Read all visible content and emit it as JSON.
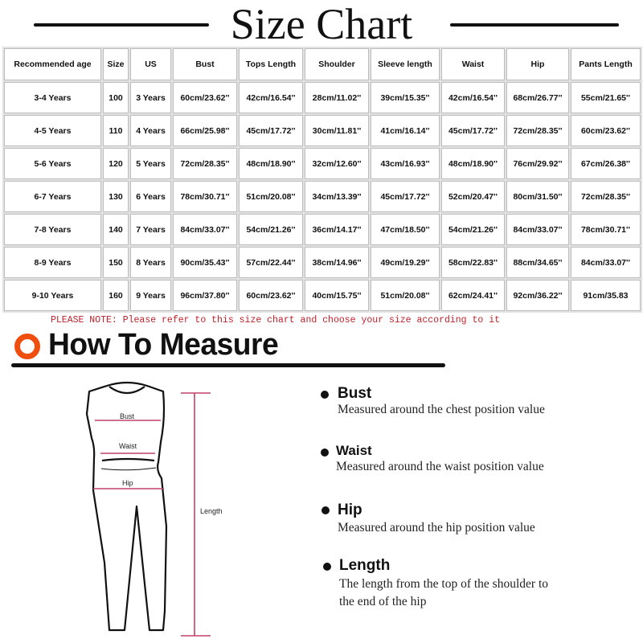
{
  "title": "Size Chart",
  "table": {
    "headers": [
      "Recommended age",
      "Size",
      "US",
      "Bust",
      "Tops Length",
      "Shoulder",
      "Sleeve length",
      "Waist",
      "Hip",
      "Pants Length"
    ],
    "rows": [
      [
        "3-4 Years",
        "100",
        "3 Years",
        "60cm/23.62''",
        "42cm/16.54''",
        "28cm/11.02''",
        "39cm/15.35''",
        "42cm/16.54''",
        "68cm/26.77''",
        "55cm/21.65''"
      ],
      [
        "4-5 Years",
        "110",
        "4 Years",
        "66cm/25.98''",
        "45cm/17.72''",
        "30cm/11.81''",
        "41cm/16.14''",
        "45cm/17.72''",
        "72cm/28.35''",
        "60cm/23.62''"
      ],
      [
        "5-6 Years",
        "120",
        "5 Years",
        "72cm/28.35''",
        "48cm/18.90''",
        "32cm/12.60''",
        "43cm/16.93''",
        "48cm/18.90''",
        "76cm/29.92''",
        "67cm/26.38''"
      ],
      [
        "6-7 Years",
        "130",
        "6 Years",
        "78cm/30.71''",
        "51cm/20.08''",
        "34cm/13.39''",
        "45cm/17.72''",
        "52cm/20.47''",
        "80cm/31.50''",
        "72cm/28.35''"
      ],
      [
        "7-8 Years",
        "140",
        "7 Years",
        "84cm/33.07''",
        "54cm/21.26''",
        "36cm/14.17''",
        "47cm/18.50''",
        "54cm/21.26''",
        "84cm/33.07''",
        "78cm/30.71''"
      ],
      [
        "8-9 Years",
        "150",
        "8 Years",
        "90cm/35.43''",
        "57cm/22.44''",
        "38cm/14.96''",
        "49cm/19.29''",
        "58cm/22.83''",
        "88cm/34.65''",
        "84cm/33.07''"
      ],
      [
        "9-10 Years",
        "160",
        "9 Years",
        "96cm/37.80''",
        "60cm/23.62''",
        "40cm/15.75''",
        "51cm/20.08''",
        "62cm/24.41''",
        "92cm/36.22''",
        "91cm/35.83"
      ]
    ]
  },
  "note": "PLEASE NOTE: Please refer to this size chart and choose your size according to it",
  "how_to": {
    "title": "How To Measure",
    "icon": "orange-ring-icon",
    "accent": "#f04e0f",
    "figure_labels": {
      "bust": "Bust",
      "waist": "Waist",
      "hip": "Hip",
      "length": "Length"
    },
    "items": [
      {
        "label": "Bust",
        "desc": "Measured around the chest position value"
      },
      {
        "label": "Waist",
        "desc": "Measured around the waist position value"
      },
      {
        "label": "Hip",
        "desc": "Measured around the  hip position value"
      },
      {
        "label": "Length",
        "desc": "The length from the top of the shoulder to",
        "desc2": "the end of the hip"
      }
    ]
  },
  "colors": {
    "note": "#c0202a",
    "measure_line": "#c2426a"
  }
}
